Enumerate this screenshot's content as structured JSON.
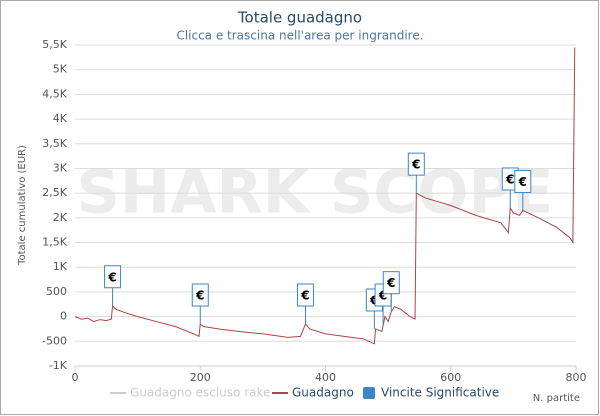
{
  "chart_data": {
    "type": "line",
    "title": "Totale guadagno",
    "subtitle": "Clicca e trascina nell'area per ingrandire.",
    "watermark": "SHARK SCOPE",
    "y_label": "Totale cumulativo (EUR)",
    "x_label": "N. partite",
    "x": [
      0,
      10,
      20,
      30,
      40,
      50,
      58,
      60,
      65,
      80,
      100,
      130,
      160,
      190,
      198,
      200,
      205,
      230,
      260,
      300,
      340,
      360,
      368,
      375,
      400,
      430,
      460,
      478,
      480,
      490,
      495,
      500,
      505,
      510,
      520,
      535,
      543,
      545,
      560,
      600,
      640,
      680,
      692,
      695,
      700,
      710,
      715,
      740,
      770,
      790,
      795,
      798
    ],
    "series": [
      {
        "name": "Guadagno escluso rake",
        "color": "#cccccc",
        "visible": false
      },
      {
        "name": "Guadagno",
        "color": "#aa4643",
        "visible": true,
        "values": [
          0,
          -50,
          -30,
          -100,
          -60,
          -80,
          -50,
          220,
          150,
          80,
          0,
          -100,
          -200,
          -350,
          -400,
          -150,
          -200,
          -250,
          -300,
          -350,
          -420,
          -400,
          -150,
          -250,
          -350,
          -400,
          -450,
          -550,
          -250,
          -300,
          0,
          -100,
          100,
          200,
          150,
          0,
          -50,
          2500,
          2400,
          2250,
          2050,
          1900,
          1700,
          2200,
          2100,
          2050,
          2150,
          2000,
          1800,
          1600,
          1500,
          5450
        ]
      }
    ],
    "flags": {
      "name": "Vincite Significative",
      "color": "#3d85c6",
      "text": "€",
      "x": [
        60,
        200,
        368,
        478,
        492,
        505,
        545,
        695,
        715
      ],
      "values": [
        220,
        -150,
        -150,
        -250,
        -150,
        100,
        2500,
        2200,
        2150
      ]
    },
    "xlim": [
      0,
      800
    ],
    "xticks": [
      0,
      200,
      400,
      600,
      800
    ],
    "ylim": [
      -1000,
      5500
    ],
    "yticks": [
      {
        "value": -1000,
        "label": "-1K"
      },
      -500,
      0,
      500,
      {
        "value": 1000,
        "label": "1K"
      },
      {
        "value": 1500,
        "label": "1,5K"
      },
      {
        "value": 2000,
        "label": "2K"
      },
      {
        "value": 2500,
        "label": "2,5K"
      },
      {
        "value": 3000,
        "label": "3K"
      },
      {
        "value": 3500,
        "label": "3,5K"
      },
      {
        "value": 4000,
        "label": "4K"
      },
      {
        "value": 4500,
        "label": "4,5K"
      },
      {
        "value": 5000,
        "label": "5K"
      },
      {
        "value": 5500,
        "label": "5,5K"
      }
    ],
    "grid": true
  }
}
